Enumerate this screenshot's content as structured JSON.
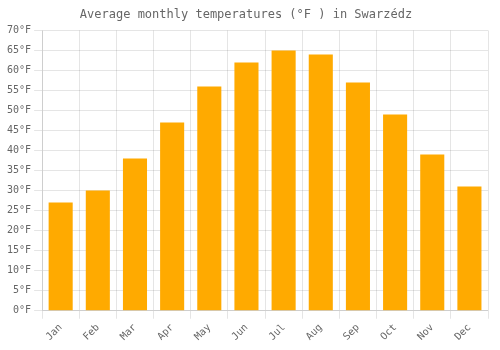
{
  "chart_data": {
    "type": "bar",
    "title": "Average monthly temperatures (°F ) in Swarzédz",
    "categories": [
      "Jan",
      "Feb",
      "Mar",
      "Apr",
      "May",
      "Jun",
      "Jul",
      "Aug",
      "Sep",
      "Oct",
      "Nov",
      "Dec"
    ],
    "values": [
      27,
      30,
      38,
      47,
      56,
      62,
      65,
      64,
      57,
      49,
      39,
      31
    ],
    "color": "#FFAA00",
    "ylim": [
      0,
      70
    ],
    "yticks": [
      {
        "value": 0,
        "label": "0°F"
      },
      {
        "value": 5,
        "label": "5°F"
      },
      {
        "value": 10,
        "label": "10°F"
      },
      {
        "value": 15,
        "label": "15°F"
      },
      {
        "value": 20,
        "label": "20°F"
      },
      {
        "value": 25,
        "label": "25°F"
      },
      {
        "value": 30,
        "label": "30°F"
      },
      {
        "value": 35,
        "label": "35°F"
      },
      {
        "value": 40,
        "label": "40°F"
      },
      {
        "value": 45,
        "label": "45°F"
      },
      {
        "value": 50,
        "label": "50°F"
      },
      {
        "value": 55,
        "label": "55°F"
      },
      {
        "value": 60,
        "label": "60°F"
      },
      {
        "value": 65,
        "label": "65°F"
      },
      {
        "value": 70,
        "label": "70°F"
      }
    ],
    "grid": true
  }
}
